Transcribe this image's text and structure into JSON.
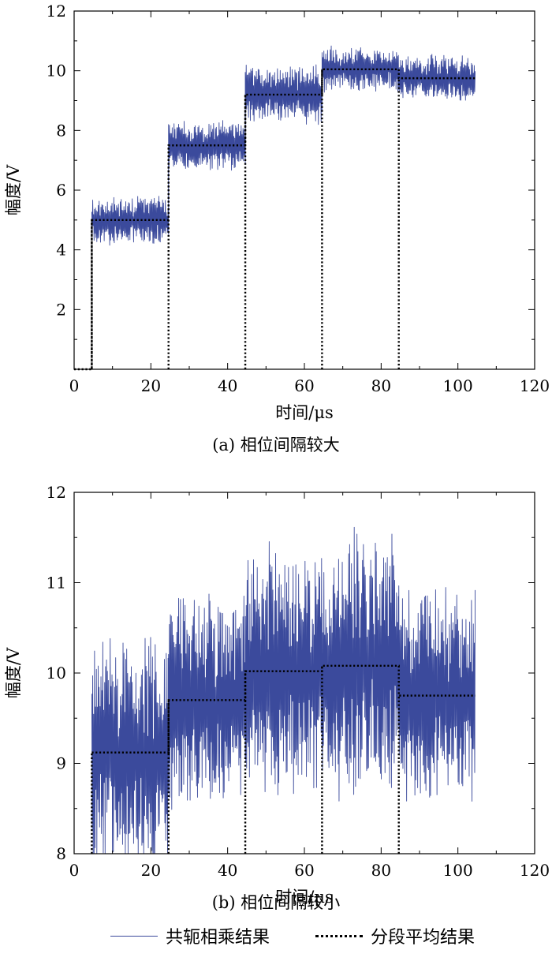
{
  "colors": {
    "series_line": "#3b4a9c",
    "average_line": "#000000",
    "axis": "#000000"
  },
  "legend": {
    "series1": "共轭相乘结果",
    "series2": "分段平均结果"
  },
  "chart_data": [
    {
      "type": "line",
      "caption": "(a) 相位间隔较大",
      "xlabel": "时间/μs",
      "ylabel": "幅度/V",
      "xlim": [
        0,
        120
      ],
      "ylim": [
        0,
        12
      ],
      "xticks": [
        "0",
        "20",
        "40",
        "60",
        "80",
        "100",
        "120"
      ],
      "yticks": [
        "2",
        "4",
        "6",
        "8",
        "10",
        "12"
      ],
      "xtick_values": [
        0,
        20,
        40,
        60,
        80,
        100,
        120
      ],
      "ytick_values": [
        2,
        4,
        6,
        8,
        10,
        12
      ],
      "series": [
        {
          "name": "共轭相乘结果",
          "style": "noisy",
          "segments": [
            {
              "x_start": 4.6,
              "x_end": 24.6,
              "mean": 5.0,
              "amplitude": 0.75
            },
            {
              "x_start": 24.6,
              "x_end": 44.6,
              "mean": 7.5,
              "amplitude": 0.75
            },
            {
              "x_start": 44.6,
              "x_end": 64.6,
              "mean": 9.2,
              "amplitude": 0.9
            },
            {
              "x_start": 64.6,
              "x_end": 84.6,
              "mean": 10.05,
              "amplitude": 0.7
            },
            {
              "x_start": 84.6,
              "x_end": 104.5,
              "mean": 9.75,
              "amplitude": 0.7
            }
          ]
        },
        {
          "name": "分段平均结果",
          "style": "dotted-step",
          "x": [
            0,
            4.6,
            4.6,
            24.6,
            24.6,
            44.6,
            44.6,
            64.6,
            64.6,
            84.6,
            84.6,
            104.5
          ],
          "y": [
            0,
            0,
            5.0,
            5.0,
            7.5,
            7.5,
            9.2,
            9.2,
            10.05,
            10.05,
            9.75,
            9.75
          ],
          "drops": [
            4.6,
            24.6,
            44.6,
            64.6,
            84.6
          ]
        }
      ]
    },
    {
      "type": "line",
      "caption": "(b) 相位间隔较小",
      "xlabel": "时间/μs",
      "ylabel": "幅度/V",
      "xlim": [
        0,
        120
      ],
      "ylim": [
        8,
        12
      ],
      "xticks": [
        "0",
        "20",
        "40",
        "60",
        "80",
        "100",
        "120"
      ],
      "yticks": [
        "8",
        "9",
        "10",
        "11",
        "12"
      ],
      "xtick_values": [
        0,
        20,
        40,
        60,
        80,
        100,
        120
      ],
      "ytick_values": [
        8,
        9,
        10,
        11,
        12
      ],
      "series": [
        {
          "name": "共轭相乘结果",
          "style": "noisy",
          "segments": [
            {
              "x_start": 4.6,
              "x_end": 24.6,
              "mean": 9.1,
              "amplitude": 1.2
            },
            {
              "x_start": 24.6,
              "x_end": 44.6,
              "mean": 9.7,
              "amplitude": 1.1
            },
            {
              "x_start": 44.6,
              "x_end": 64.6,
              "mean": 10.0,
              "amplitude": 1.3
            },
            {
              "x_start": 64.6,
              "x_end": 84.6,
              "mean": 10.08,
              "amplitude": 1.35
            },
            {
              "x_start": 84.6,
              "x_end": 104.5,
              "mean": 9.75,
              "amplitude": 1.1
            }
          ]
        },
        {
          "name": "分段平均结果",
          "style": "dotted-step",
          "x": [
            4.6,
            24.6,
            24.6,
            44.6,
            44.6,
            64.6,
            64.6,
            84.6,
            84.6,
            104.5
          ],
          "y": [
            9.12,
            9.12,
            9.7,
            9.7,
            10.02,
            10.02,
            10.08,
            10.08,
            9.75,
            9.75
          ],
          "drops": [
            4.6,
            24.6,
            44.6,
            64.6,
            84.6
          ]
        }
      ]
    }
  ]
}
